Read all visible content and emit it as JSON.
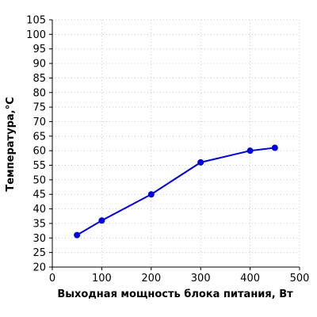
{
  "chart_data": {
    "type": "line",
    "x": [
      50,
      100,
      200,
      300,
      400,
      450
    ],
    "series": [
      {
        "values": [
          31,
          36,
          45,
          56,
          60,
          61
        ]
      }
    ],
    "xlabel": "Выходная мощность блока питания, Вт",
    "ylabel": "Температура,°C",
    "xlim": [
      0,
      500
    ],
    "ylim": [
      20,
      105
    ],
    "xticks": [
      0,
      100,
      200,
      300,
      400,
      500
    ],
    "yticks": [
      20,
      25,
      30,
      35,
      40,
      45,
      50,
      55,
      60,
      65,
      70,
      75,
      80,
      85,
      90,
      95,
      100,
      105
    ],
    "grid": true,
    "legend": "none",
    "colors": {
      "series": "#0000dd",
      "grid": "#c8c8c8",
      "axis": "#000000"
    }
  }
}
